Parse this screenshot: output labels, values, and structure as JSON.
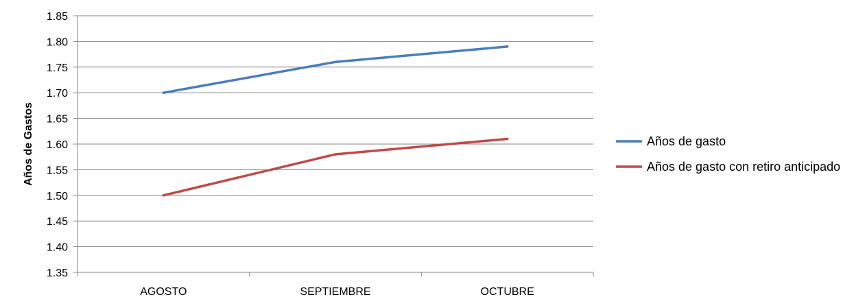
{
  "chart_data": {
    "type": "line",
    "title": "",
    "xlabel": "",
    "ylabel": "Años de Gastos",
    "categories": [
      "AGOSTO",
      "SEPTIEMBRE",
      "OCTUBRE"
    ],
    "y_ticks": [
      "1.35",
      "1.40",
      "1.45",
      "1.50",
      "1.55",
      "1.60",
      "1.65",
      "1.70",
      "1.75",
      "1.80",
      "1.85"
    ],
    "ylim": [
      1.35,
      1.85
    ],
    "grid": true,
    "legend_position": "right",
    "series": [
      {
        "name": "Años de gasto",
        "color": "#4A7EBB",
        "values": [
          1.7,
          1.76,
          1.79
        ]
      },
      {
        "name": "Años de gasto con retiro anticipado",
        "color": "#BE4B48",
        "values": [
          1.5,
          1.58,
          1.61
        ]
      }
    ]
  }
}
